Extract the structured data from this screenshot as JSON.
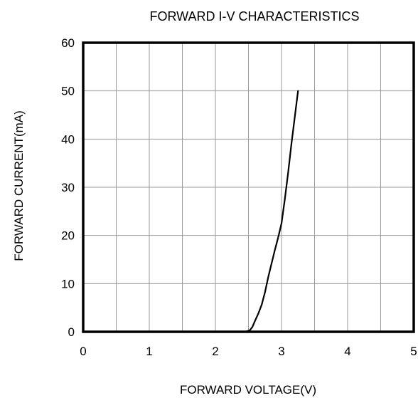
{
  "chart_data": {
    "type": "line",
    "title": "FORWARD I-V CHARACTERISTICS",
    "xlabel": "FORWARD VOLTAGE(V)",
    "ylabel": "FORWARD CURRENT(mA)",
    "xlim": [
      0,
      5
    ],
    "ylim": [
      0,
      60
    ],
    "xticks": [
      0,
      1,
      2,
      3,
      4,
      5
    ],
    "yticks": [
      0,
      10,
      20,
      30,
      40,
      50,
      60
    ],
    "x_grid_step": 0.5,
    "y_grid_step": 10,
    "grid": true,
    "series": [
      {
        "x": [
          2.45,
          2.52,
          2.56,
          2.6,
          2.65,
          2.7,
          2.75,
          2.8,
          2.85,
          2.9,
          2.95,
          3.0,
          3.05,
          3.1,
          3.15,
          3.2,
          3.25
        ],
        "y": [
          0,
          0.3,
          1,
          2.3,
          3.8,
          5.6,
          8.2,
          11.4,
          14.2,
          17,
          19.6,
          22.5,
          27.5,
          33,
          39,
          44.5,
          50
        ]
      }
    ],
    "colors": {
      "line": "#000000",
      "grid": "#9a9a9a",
      "frame": "#000000"
    }
  }
}
